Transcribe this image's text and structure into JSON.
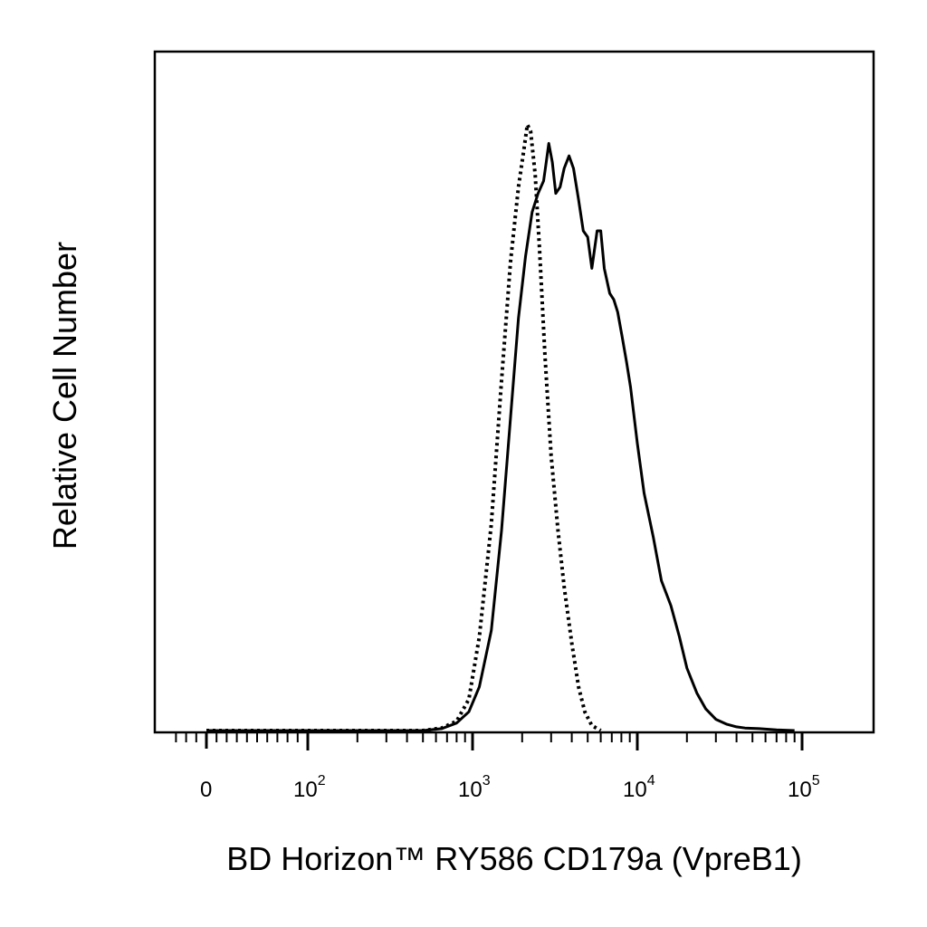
{
  "chart_data": {
    "type": "line",
    "title": "",
    "xlabel": "BD Horizon™ RY586 CD179a (VpreB1)",
    "ylabel": "Relative Cell Number",
    "x_scale": "biexponential (log above 10^2)",
    "xlim": [
      -40,
      150000
    ],
    "ylim": [
      0,
      1.0
    ],
    "grid": false,
    "legend": "none",
    "x_tick_labels": [
      {
        "value": 0,
        "base": "0",
        "exp": ""
      },
      {
        "value": 100,
        "base": "10",
        "exp": "2"
      },
      {
        "value": 1000,
        "base": "10",
        "exp": "3"
      },
      {
        "value": 10000,
        "base": "10",
        "exp": "4"
      },
      {
        "value": 100000,
        "base": "10",
        "exp": "5"
      }
    ],
    "series": [
      {
        "style": "solid",
        "color": "#000000",
        "x": [
          0,
          500,
          650,
          800,
          950,
          1100,
          1300,
          1500,
          1700,
          1900,
          2100,
          2300,
          2500,
          2700,
          2800,
          2900,
          3050,
          3200,
          3400,
          3600,
          3850,
          4100,
          4400,
          4700,
          5000,
          5300,
          5700,
          6000,
          6300,
          6800,
          7200,
          7600,
          8100,
          8600,
          9100,
          10000,
          11000,
          12500,
          14000,
          16000,
          18000,
          20000,
          23000,
          26000,
          30000,
          35000,
          40000,
          45000,
          55000,
          70000,
          90000
        ],
        "y": [
          0,
          0,
          0.003,
          0.012,
          0.03,
          0.07,
          0.16,
          0.32,
          0.5,
          0.66,
          0.76,
          0.83,
          0.86,
          0.88,
          0.91,
          0.94,
          0.91,
          0.86,
          0.87,
          0.9,
          0.92,
          0.9,
          0.85,
          0.8,
          0.79,
          0.74,
          0.8,
          0.8,
          0.74,
          0.7,
          0.69,
          0.67,
          0.63,
          0.59,
          0.55,
          0.46,
          0.38,
          0.31,
          0.24,
          0.2,
          0.15,
          0.1,
          0.06,
          0.035,
          0.018,
          0.01,
          0.006,
          0.004,
          0.003,
          0.001,
          0
        ]
      },
      {
        "style": "dotted",
        "color": "#000000",
        "x": [
          0,
          500,
          650,
          800,
          950,
          1100,
          1300,
          1500,
          1700,
          1900,
          2050,
          2150,
          2250,
          2400,
          2550,
          2750,
          3000,
          3300,
          3600,
          4000,
          4400,
          4800,
          5300,
          6000
        ],
        "y": [
          0,
          0,
          0.004,
          0.015,
          0.05,
          0.15,
          0.33,
          0.56,
          0.75,
          0.87,
          0.93,
          0.97,
          0.96,
          0.89,
          0.77,
          0.6,
          0.44,
          0.32,
          0.23,
          0.14,
          0.07,
          0.03,
          0.008,
          0
        ]
      }
    ]
  }
}
